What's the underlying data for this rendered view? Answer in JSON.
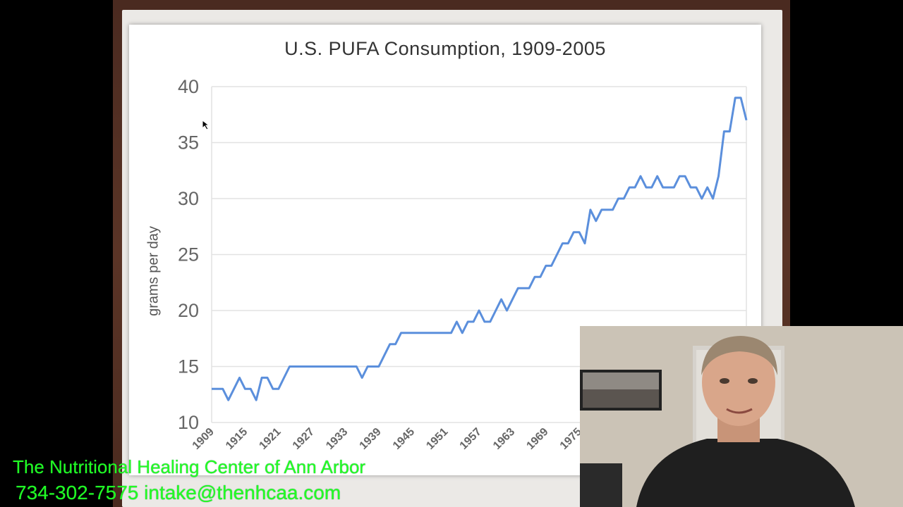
{
  "chart_data": {
    "type": "line",
    "title": "U.S. PUFA Consumption, 1909-2005",
    "xlabel": "",
    "ylabel": "grams per day",
    "ylim": [
      10,
      40
    ],
    "xlim": [
      1909,
      2005
    ],
    "yticks": [
      "10",
      "15",
      "20",
      "25",
      "30",
      "35",
      "40"
    ],
    "xticks": [
      "1909",
      "1915",
      "1921",
      "1927",
      "1933",
      "1939",
      "1945",
      "1951",
      "1957",
      "1963",
      "1969",
      "1975"
    ],
    "grid": true,
    "colors": {
      "series": "#5b8fdc"
    },
    "series": [
      {
        "name": "",
        "x": [
          1909,
          1910,
          1911,
          1912,
          1913,
          1914,
          1915,
          1916,
          1917,
          1918,
          1919,
          1920,
          1921,
          1922,
          1923,
          1924,
          1925,
          1926,
          1927,
          1928,
          1929,
          1930,
          1931,
          1932,
          1933,
          1934,
          1935,
          1936,
          1937,
          1938,
          1939,
          1940,
          1941,
          1942,
          1943,
          1944,
          1945,
          1946,
          1947,
          1948,
          1949,
          1950,
          1951,
          1952,
          1953,
          1954,
          1955,
          1956,
          1957,
          1958,
          1959,
          1960,
          1961,
          1962,
          1963,
          1964,
          1965,
          1966,
          1967,
          1968,
          1969,
          1970,
          1971,
          1972,
          1973,
          1974,
          1975,
          1976,
          1977,
          1978,
          1979,
          1980,
          1981,
          1982,
          1983,
          1984,
          1985,
          1986,
          1987,
          1988,
          1989,
          1990,
          1991,
          1992,
          1993,
          1994,
          1995,
          1996,
          1997,
          1998,
          1999,
          2000,
          2001,
          2002,
          2003,
          2004,
          2005
        ],
        "y": [
          13,
          13,
          13,
          12,
          13,
          14,
          13,
          13,
          12,
          14,
          14,
          13,
          13,
          14,
          15,
          15,
          15,
          15,
          15,
          15,
          15,
          15,
          15,
          15,
          15,
          15,
          15,
          14,
          15,
          15,
          15,
          16,
          17,
          17,
          18,
          18,
          18,
          18,
          18,
          18,
          18,
          18,
          18,
          18,
          19,
          18,
          19,
          19,
          20,
          19,
          19,
          20,
          21,
          20,
          21,
          22,
          22,
          22,
          23,
          23,
          24,
          24,
          25,
          26,
          26,
          27,
          27,
          26,
          29,
          28,
          29,
          29,
          29,
          30,
          30,
          31,
          31,
          32,
          31,
          31,
          32,
          31,
          31,
          31,
          32,
          32,
          31,
          31,
          30,
          31,
          30,
          32,
          36,
          36,
          39,
          39,
          37
        ]
      }
    ]
  },
  "overlay": {
    "line1": "The Nutritional Healing Center of Ann Arbor",
    "line2": "734-302-7575 intake@thenhcaa.com"
  }
}
